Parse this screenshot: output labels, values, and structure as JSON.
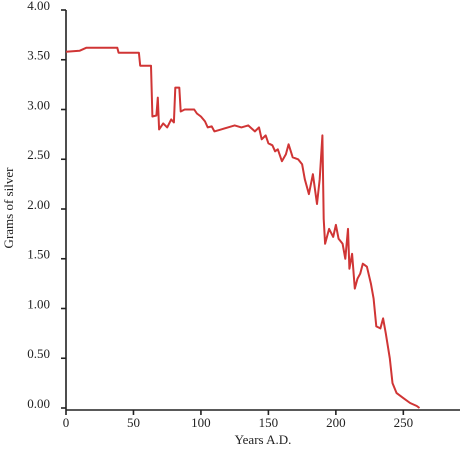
{
  "chart_data": {
    "type": "line",
    "xlabel": "Years A.D.",
    "ylabel": "Grams of silver",
    "color": "#d03535",
    "x": [
      0,
      10,
      15,
      38,
      39,
      54,
      55,
      63,
      64,
      67,
      68,
      69,
      72,
      75,
      78,
      80,
      81,
      84,
      85,
      88,
      95,
      97,
      100,
      103,
      105,
      108,
      110,
      115,
      120,
      125,
      130,
      135,
      140,
      143,
      145,
      148,
      150,
      153,
      155,
      157,
      160,
      163,
      165,
      168,
      172,
      175,
      177,
      180,
      183,
      186,
      188,
      190,
      191,
      192,
      195,
      198,
      200,
      202,
      205,
      207,
      209,
      210,
      212,
      214,
      216,
      218,
      220,
      223,
      226,
      228,
      230,
      233,
      235,
      237,
      240,
      242,
      245,
      250,
      255,
      260,
      262
    ],
    "values": [
      3.58,
      3.59,
      3.62,
      3.62,
      3.57,
      3.57,
      3.44,
      3.44,
      2.93,
      2.94,
      3.12,
      2.8,
      2.86,
      2.82,
      2.9,
      2.87,
      3.22,
      3.22,
      2.98,
      3.0,
      3.0,
      2.96,
      2.93,
      2.88,
      2.82,
      2.83,
      2.78,
      2.8,
      2.82,
      2.84,
      2.82,
      2.84,
      2.78,
      2.82,
      2.7,
      2.74,
      2.66,
      2.64,
      2.58,
      2.6,
      2.48,
      2.55,
      2.65,
      2.52,
      2.5,
      2.45,
      2.3,
      2.15,
      2.35,
      2.05,
      2.3,
      2.74,
      1.9,
      1.65,
      1.8,
      1.72,
      1.84,
      1.7,
      1.65,
      1.5,
      1.8,
      1.4,
      1.55,
      1.2,
      1.3,
      1.35,
      1.45,
      1.42,
      1.25,
      1.1,
      0.82,
      0.8,
      0.9,
      0.75,
      0.5,
      0.25,
      0.15,
      0.1,
      0.05,
      0.02,
      0.0
    ],
    "xlim": [
      0,
      292
    ],
    "ylim": [
      0,
      4
    ],
    "xticks": [
      0,
      50,
      100,
      150,
      200,
      250
    ],
    "yticks": [
      {
        "value": 0,
        "label": "0.00"
      },
      {
        "value": 0.5,
        "label": "0.50"
      },
      {
        "value": 1,
        "label": "1.00"
      },
      {
        "value": 1.5,
        "label": "1.50"
      },
      {
        "value": 2,
        "label": "2.00"
      },
      {
        "value": 2.5,
        "label": "2.50"
      },
      {
        "value": 3,
        "label": "3.00"
      },
      {
        "value": 3.5,
        "label": "3.50"
      },
      {
        "value": 4,
        "label": "4.00"
      }
    ]
  }
}
